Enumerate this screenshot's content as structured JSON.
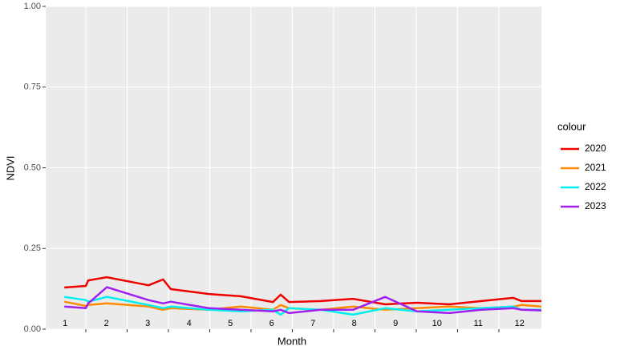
{
  "chart_data": {
    "type": "line",
    "x_label": "Month",
    "y_label": "NDVI",
    "legend_title": "colour",
    "x": [
      0.98,
      1.5,
      1.56,
      2.01,
      3.02,
      3.37,
      3.56,
      4.48,
      5.25,
      6.03,
      6.22,
      6.42,
      7.19,
      7.97,
      8.75,
      9.52,
      10.3,
      11.08,
      11.85,
      12.05,
      12.53
    ],
    "series": [
      {
        "name": "2020",
        "color": "#ee0000",
        "values": [
          0.129,
          0.134,
          0.151,
          0.161,
          0.136,
          0.154,
          0.124,
          0.109,
          0.102,
          0.084,
          0.107,
          0.084,
          0.087,
          0.094,
          0.077,
          0.082,
          0.077,
          0.087,
          0.097,
          0.087,
          0.087
        ]
      },
      {
        "name": "2021",
        "color": "#ff8c00",
        "values": [
          0.085,
          0.072,
          0.075,
          0.08,
          0.07,
          0.06,
          0.065,
          0.06,
          0.07,
          0.06,
          0.075,
          0.065,
          0.06,
          0.07,
          0.06,
          0.065,
          0.07,
          0.065,
          0.07,
          0.075,
          0.07
        ]
      },
      {
        "name": "2022",
        "color": "#00eeee",
        "values": [
          0.1,
          0.09,
          0.085,
          0.1,
          0.075,
          0.065,
          0.07,
          0.06,
          0.055,
          0.06,
          0.045,
          0.065,
          0.06,
          0.045,
          0.065,
          0.055,
          0.06,
          0.065,
          0.07,
          0.06,
          0.06
        ]
      },
      {
        "name": "2023",
        "color": "#a020f0",
        "values": [
          0.07,
          0.065,
          0.08,
          0.13,
          0.09,
          0.08,
          0.085,
          0.065,
          0.06,
          0.055,
          0.06,
          0.05,
          0.06,
          0.06,
          0.1,
          0.055,
          0.05,
          0.06,
          0.065,
          0.06,
          0.058
        ]
      }
    ],
    "xlim": [
      0.53,
      12.53
    ],
    "xticks": [
      1,
      2,
      3,
      4,
      5,
      6,
      7,
      8,
      9,
      10,
      11,
      12
    ],
    "xgrid": [
      1.5,
      2.5,
      3.5,
      4.5,
      5.5,
      6.5,
      7.5,
      8.5,
      9.5,
      10.5,
      11.5
    ],
    "ylim": [
      0,
      1
    ],
    "yticks": [
      {
        "value": 0,
        "label": "0.00"
      },
      {
        "value": 0.25,
        "label": "0.25"
      },
      {
        "value": 0.5,
        "label": "0.50"
      },
      {
        "value": 0.75,
        "label": "0.75"
      },
      {
        "value": 1,
        "label": "1.00"
      }
    ],
    "grid": true
  }
}
